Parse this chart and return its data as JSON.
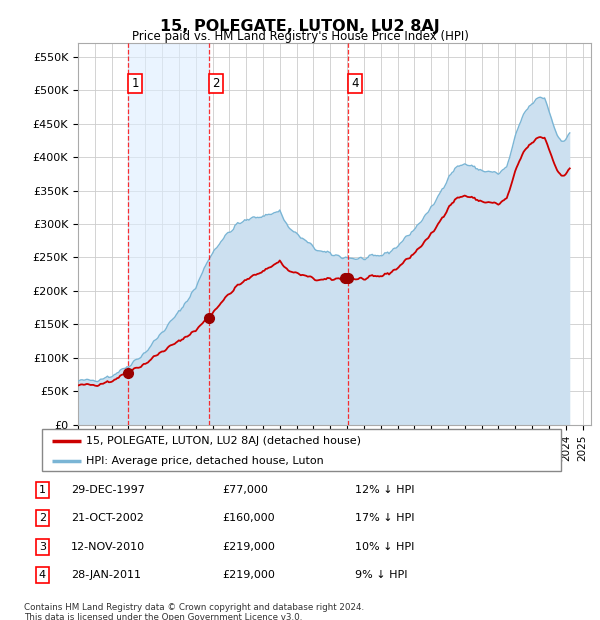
{
  "title": "15, POLEGATE, LUTON, LU2 8AJ",
  "subtitle": "Price paid vs. HM Land Registry's House Price Index (HPI)",
  "ylabel_ticks": [
    "£0",
    "£50K",
    "£100K",
    "£150K",
    "£200K",
    "£250K",
    "£300K",
    "£350K",
    "£400K",
    "£450K",
    "£500K",
    "£550K"
  ],
  "ytick_values": [
    0,
    50000,
    100000,
    150000,
    200000,
    250000,
    300000,
    350000,
    400000,
    450000,
    500000,
    550000
  ],
  "ylim": [
    0,
    570000
  ],
  "xlim_start": 1995.0,
  "xlim_end": 2025.5,
  "sale_dates_decimal": [
    1997.99,
    2002.81,
    2010.87,
    2011.07
  ],
  "sale_prices": [
    77000,
    160000,
    219000,
    219000
  ],
  "sale_labels": [
    "1",
    "2",
    "3",
    "4"
  ],
  "label_in_chart": [
    true,
    true,
    false,
    true
  ],
  "red_line_color": "#cc0000",
  "blue_line_color": "#7ab5d5",
  "blue_fill_color": "#cce0f0",
  "marker_color": "#990000",
  "legend_red_label": "15, POLEGATE, LUTON, LU2 8AJ (detached house)",
  "legend_blue_label": "HPI: Average price, detached house, Luton",
  "table_rows": [
    [
      "1",
      "29-DEC-1997",
      "£77,000",
      "12% ↓ HPI"
    ],
    [
      "2",
      "21-OCT-2002",
      "£160,000",
      "17% ↓ HPI"
    ],
    [
      "3",
      "12-NOV-2010",
      "£219,000",
      "10% ↓ HPI"
    ],
    [
      "4",
      "28-JAN-2011",
      "£219,000",
      "9% ↓ HPI"
    ]
  ],
  "footnote": "Contains HM Land Registry data © Crown copyright and database right 2024.\nThis data is licensed under the Open Government Licence v3.0."
}
